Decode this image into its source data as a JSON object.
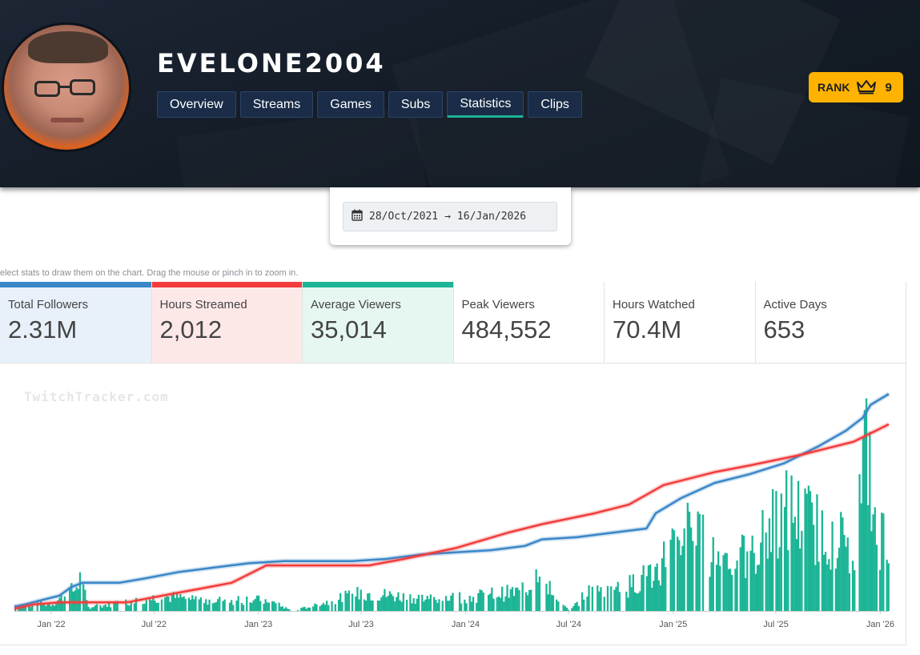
{
  "channel": {
    "name": "EVELONE2004"
  },
  "nav": {
    "tabs": [
      {
        "label": "Overview",
        "active": false
      },
      {
        "label": "Streams",
        "active": false
      },
      {
        "label": "Games",
        "active": false
      },
      {
        "label": "Subs",
        "active": false
      },
      {
        "label": "Statistics",
        "active": true
      },
      {
        "label": "Clips",
        "active": false
      }
    ]
  },
  "rank": {
    "label": "RANK",
    "icon": "crown-icon",
    "value": "9"
  },
  "date_range": {
    "icon": "calendar-icon",
    "start": "28/Oct/2021",
    "arrow": "→",
    "end": "16/Jan/2026"
  },
  "hint": "elect stats to draw them on the chart. Drag the mouse or pinch in to zoom in.",
  "stats": [
    {
      "label": "Total Followers",
      "value": "2.31M",
      "color": "#3a86c8",
      "bg": "#e8f1fa",
      "selected": true
    },
    {
      "label": "Hours Streamed",
      "value": "2,012",
      "color": "#f23c3c",
      "bg": "#fde8e8",
      "selected": true
    },
    {
      "label": "Average Viewers",
      "value": "35,014",
      "color": "#1db596",
      "bg": "#e6f7f2",
      "selected": true
    },
    {
      "label": "Peak Viewers",
      "value": "484,552",
      "color": "",
      "bg": "#ffffff",
      "selected": false
    },
    {
      "label": "Hours Watched",
      "value": "70.4M",
      "color": "",
      "bg": "#ffffff",
      "selected": false
    },
    {
      "label": "Active Days",
      "value": "653",
      "color": "",
      "bg": "#ffffff",
      "selected": false
    }
  ],
  "chart_data": {
    "type": "bar+line",
    "watermark": "TwitchTracker.com",
    "x_tick_labels": [
      "Jan '22",
      "Jul '22",
      "Jan '23",
      "Jul '23",
      "Jan '24",
      "Jul '24",
      "Jan '25",
      "Jul '25",
      "Jan '26"
    ],
    "x_range": [
      "2021-10-28",
      "2026-01-16"
    ],
    "grid": false,
    "legend": "none",
    "series": [
      {
        "name": "Total Followers",
        "kind": "line",
        "color": "#3a86c8",
        "points": [
          [
            "2021-10-28",
            0.02
          ],
          [
            "2021-11-15",
            0.03
          ],
          [
            "2021-12-15",
            0.05
          ],
          [
            "2022-01-15",
            0.07
          ],
          [
            "2022-02-05",
            0.11
          ],
          [
            "2022-02-25",
            0.13
          ],
          [
            "2022-03-15",
            0.13
          ],
          [
            "2022-05-01",
            0.13
          ],
          [
            "2022-06-15",
            0.15
          ],
          [
            "2022-08-15",
            0.18
          ],
          [
            "2022-10-15",
            0.2
          ],
          [
            "2022-12-15",
            0.22
          ],
          [
            "2023-02-15",
            0.23
          ],
          [
            "2023-04-15",
            0.23
          ],
          [
            "2023-06-15",
            0.23
          ],
          [
            "2023-08-15",
            0.24
          ],
          [
            "2023-10-15",
            0.26
          ],
          [
            "2023-12-15",
            0.27
          ],
          [
            "2024-02-15",
            0.28
          ],
          [
            "2024-04-15",
            0.3
          ],
          [
            "2024-05-15",
            0.33
          ],
          [
            "2024-07-15",
            0.34
          ],
          [
            "2024-09-15",
            0.36
          ],
          [
            "2024-11-15",
            0.38
          ],
          [
            "2024-12-01",
            0.45
          ],
          [
            "2025-01-15",
            0.52
          ],
          [
            "2025-03-15",
            0.59
          ],
          [
            "2025-05-15",
            0.63
          ],
          [
            "2025-07-15",
            0.68
          ],
          [
            "2025-09-15",
            0.76
          ],
          [
            "2025-11-01",
            0.83
          ],
          [
            "2025-12-01",
            0.89
          ],
          [
            "2025-12-15",
            0.95
          ],
          [
            "2026-01-16",
            1.0
          ]
        ]
      },
      {
        "name": "Hours Streamed",
        "kind": "line",
        "color": "#f23c3c",
        "points": [
          [
            "2021-10-28",
            0.01
          ],
          [
            "2021-12-01",
            0.03
          ],
          [
            "2022-01-15",
            0.04
          ],
          [
            "2022-03-15",
            0.04
          ],
          [
            "2022-05-15",
            0.04
          ],
          [
            "2022-07-15",
            0.07
          ],
          [
            "2022-09-15",
            0.1
          ],
          [
            "2022-11-15",
            0.13
          ],
          [
            "2023-01-15",
            0.21
          ],
          [
            "2023-03-15",
            0.21
          ],
          [
            "2023-07-15",
            0.21
          ],
          [
            "2023-09-15",
            0.24
          ],
          [
            "2023-12-15",
            0.29
          ],
          [
            "2024-03-15",
            0.36
          ],
          [
            "2024-05-15",
            0.4
          ],
          [
            "2024-08-15",
            0.45
          ],
          [
            "2024-10-15",
            0.49
          ],
          [
            "2024-12-15",
            0.58
          ],
          [
            "2025-03-15",
            0.64
          ],
          [
            "2025-05-15",
            0.67
          ],
          [
            "2025-08-15",
            0.72
          ],
          [
            "2025-11-15",
            0.78
          ],
          [
            "2026-01-16",
            0.86
          ]
        ]
      },
      {
        "name": "Average Viewers",
        "kind": "bar",
        "color": "#1db596",
        "note": "daily bars, relative heights",
        "profile": [
          [
            "2021-10-28",
            0.03
          ],
          [
            "2022-01-01",
            0.04
          ],
          [
            "2022-02-10",
            0.12
          ],
          [
            "2022-02-20",
            0.18
          ],
          [
            "2022-03-05",
            0.02
          ],
          [
            "2022-05-15",
            0.05
          ],
          [
            "2022-07-15",
            0.08
          ],
          [
            "2022-10-15",
            0.06
          ],
          [
            "2023-01-15",
            0.06
          ],
          [
            "2023-03-01",
            0.0
          ],
          [
            "2023-07-01",
            0.1
          ],
          [
            "2023-10-15",
            0.07
          ],
          [
            "2024-01-15",
            0.08
          ],
          [
            "2024-04-15",
            0.11
          ],
          [
            "2024-05-10",
            0.28
          ],
          [
            "2024-06-01",
            0.08
          ],
          [
            "2024-07-01",
            0.0
          ],
          [
            "2024-08-01",
            0.1
          ],
          [
            "2024-10-15",
            0.14
          ],
          [
            "2024-12-01",
            0.22
          ],
          [
            "2025-01-15",
            0.45
          ],
          [
            "2025-03-15",
            0.32
          ],
          [
            "2025-05-15",
            0.28
          ],
          [
            "2025-07-15",
            0.58
          ],
          [
            "2025-09-15",
            0.45
          ],
          [
            "2025-11-15",
            0.36
          ],
          [
            "2025-12-08",
            1.0
          ],
          [
            "2025-12-20",
            0.42
          ],
          [
            "2026-01-16",
            0.42
          ]
        ]
      }
    ]
  }
}
